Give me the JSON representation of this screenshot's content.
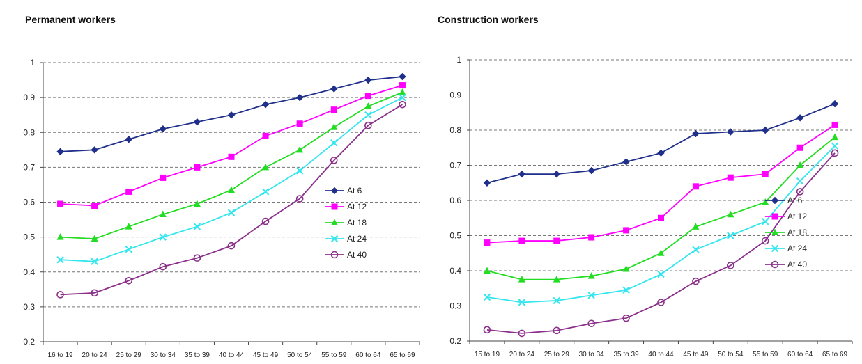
{
  "chart_data": [
    {
      "type": "line",
      "title": "Permanent workers",
      "xlabel": "",
      "ylabel": "",
      "ylim": [
        0.2,
        1
      ],
      "yticks": [
        "0.2",
        "0.3",
        "0.4",
        "0.5",
        "0.6",
        "0.7",
        "0.8",
        "0.9",
        "1"
      ],
      "grid": true,
      "legend_position": "right",
      "categories": [
        "16 to 19",
        "20 to 24",
        "25 to 29",
        "30 to 34",
        "35 to 39",
        "40 to 44",
        "45 to 49",
        "50 to 54",
        "55 to 59",
        "60 to 64",
        "65 to 69"
      ],
      "series": [
        {
          "name": "At 6",
          "color": "#1f2f8a",
          "marker": "diamond",
          "values": [
            0.745,
            0.75,
            0.78,
            0.81,
            0.83,
            0.85,
            0.88,
            0.9,
            0.925,
            0.95,
            0.96
          ]
        },
        {
          "name": "At 12",
          "color": "#ff00ff",
          "marker": "square",
          "values": [
            0.595,
            0.59,
            0.63,
            0.67,
            0.7,
            0.73,
            0.79,
            0.825,
            0.865,
            0.905,
            0.935
          ]
        },
        {
          "name": "At 18",
          "color": "#22dd22",
          "marker": "triangle",
          "values": [
            0.5,
            0.495,
            0.53,
            0.565,
            0.595,
            0.635,
            0.7,
            0.75,
            0.815,
            0.875,
            0.915
          ]
        },
        {
          "name": "At 24",
          "color": "#33e6ee",
          "marker": "x",
          "values": [
            0.435,
            0.43,
            0.465,
            0.5,
            0.53,
            0.57,
            0.63,
            0.69,
            0.77,
            0.85,
            0.9
          ]
        },
        {
          "name": "At 40",
          "color": "#8a2f8a",
          "marker": "circle",
          "values": [
            0.335,
            0.34,
            0.375,
            0.415,
            0.44,
            0.475,
            0.545,
            0.61,
            0.72,
            0.82,
            0.88
          ]
        }
      ]
    },
    {
      "type": "line",
      "title": "Construction workers",
      "xlabel": "",
      "ylabel": "",
      "ylim": [
        0.2,
        1
      ],
      "yticks": [
        "0.2",
        "0.3",
        "0.4",
        "0.5",
        "0.6",
        "0.7",
        "0.8",
        "0.9",
        "1"
      ],
      "grid": true,
      "legend_position": "right",
      "categories": [
        "15 to 19",
        "20 to 24",
        "25 to 29",
        "30 to 34",
        "35 to 39",
        "40 to 44",
        "45 to 49",
        "50 to 54",
        "55 to 59",
        "60 to 64",
        "65 to 69"
      ],
      "series": [
        {
          "name": "At 6",
          "color": "#1f2f8a",
          "marker": "diamond",
          "values": [
            0.65,
            0.675,
            0.675,
            0.685,
            0.71,
            0.735,
            0.79,
            0.795,
            0.8,
            0.835,
            0.875
          ]
        },
        {
          "name": "At 12",
          "color": "#ff00ff",
          "marker": "square",
          "values": [
            0.48,
            0.485,
            0.485,
            0.495,
            0.515,
            0.55,
            0.64,
            0.665,
            0.675,
            0.75,
            0.815
          ]
        },
        {
          "name": "At 18",
          "color": "#22dd22",
          "marker": "triangle",
          "values": [
            0.4,
            0.375,
            0.375,
            0.385,
            0.405,
            0.45,
            0.525,
            0.56,
            0.595,
            0.7,
            0.78
          ]
        },
        {
          "name": "At 24",
          "color": "#33e6ee",
          "marker": "x",
          "values": [
            0.325,
            0.31,
            0.315,
            0.33,
            0.345,
            0.39,
            0.46,
            0.5,
            0.54,
            0.655,
            0.755
          ]
        },
        {
          "name": "At 40",
          "color": "#8a2f8a",
          "marker": "circle",
          "values": [
            0.232,
            0.222,
            0.23,
            0.25,
            0.265,
            0.31,
            0.37,
            0.415,
            0.485,
            0.625,
            0.735
          ]
        }
      ]
    }
  ]
}
